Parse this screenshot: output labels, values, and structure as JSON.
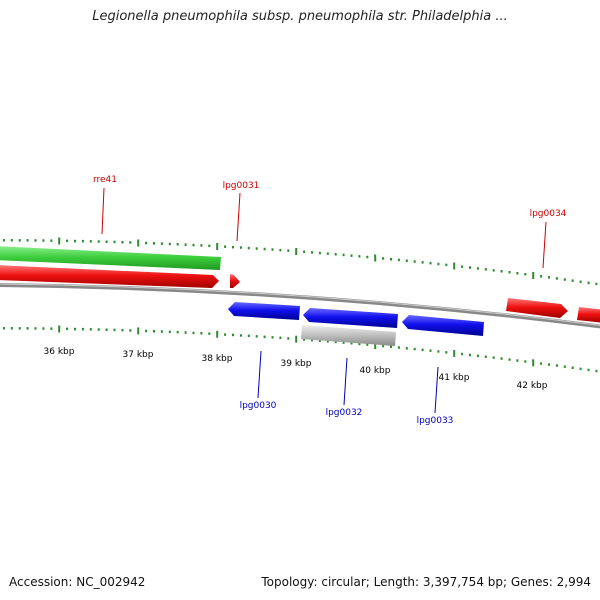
{
  "title": "Legionella pneumophila subsp. pneumophila str. Philadelphia ...",
  "accession_text": "Accession: NC_002942",
  "topology_text": "Topology: circular; Length: 3,397,754 bp; Genes: 2,994",
  "scale": {
    "labels": [
      "36 kbp",
      "37 kbp",
      "38 kbp",
      "39 kbp",
      "40 kbp",
      "41 kbp",
      "42 kbp"
    ],
    "color": "#2e8b2e"
  },
  "features": [
    {
      "name": "rre41",
      "type": "RNA",
      "strand": "+",
      "color": "#44cc44"
    },
    {
      "name": "",
      "type": "gene",
      "strand": "+",
      "color": "#ee1111"
    },
    {
      "name": "lpg0031",
      "type": "gene",
      "strand": "+",
      "color": "#ee1111"
    },
    {
      "name": "lpg0030",
      "type": "gene",
      "strand": "-",
      "color": "#1111ee"
    },
    {
      "name": "lpg0032",
      "type": "gene",
      "strand": "-",
      "color": "#1111ee"
    },
    {
      "name": "lpg0033",
      "type": "gene",
      "strand": "-",
      "color": "#1111ee"
    },
    {
      "name": "",
      "type": "other",
      "strand": "-",
      "color": "#b5b5b5"
    },
    {
      "name": "lpg0034",
      "type": "gene",
      "strand": "+",
      "color": "#ee1111"
    },
    {
      "name": "",
      "type": "gene",
      "strand": "+",
      "color": "#ee1111"
    }
  ]
}
